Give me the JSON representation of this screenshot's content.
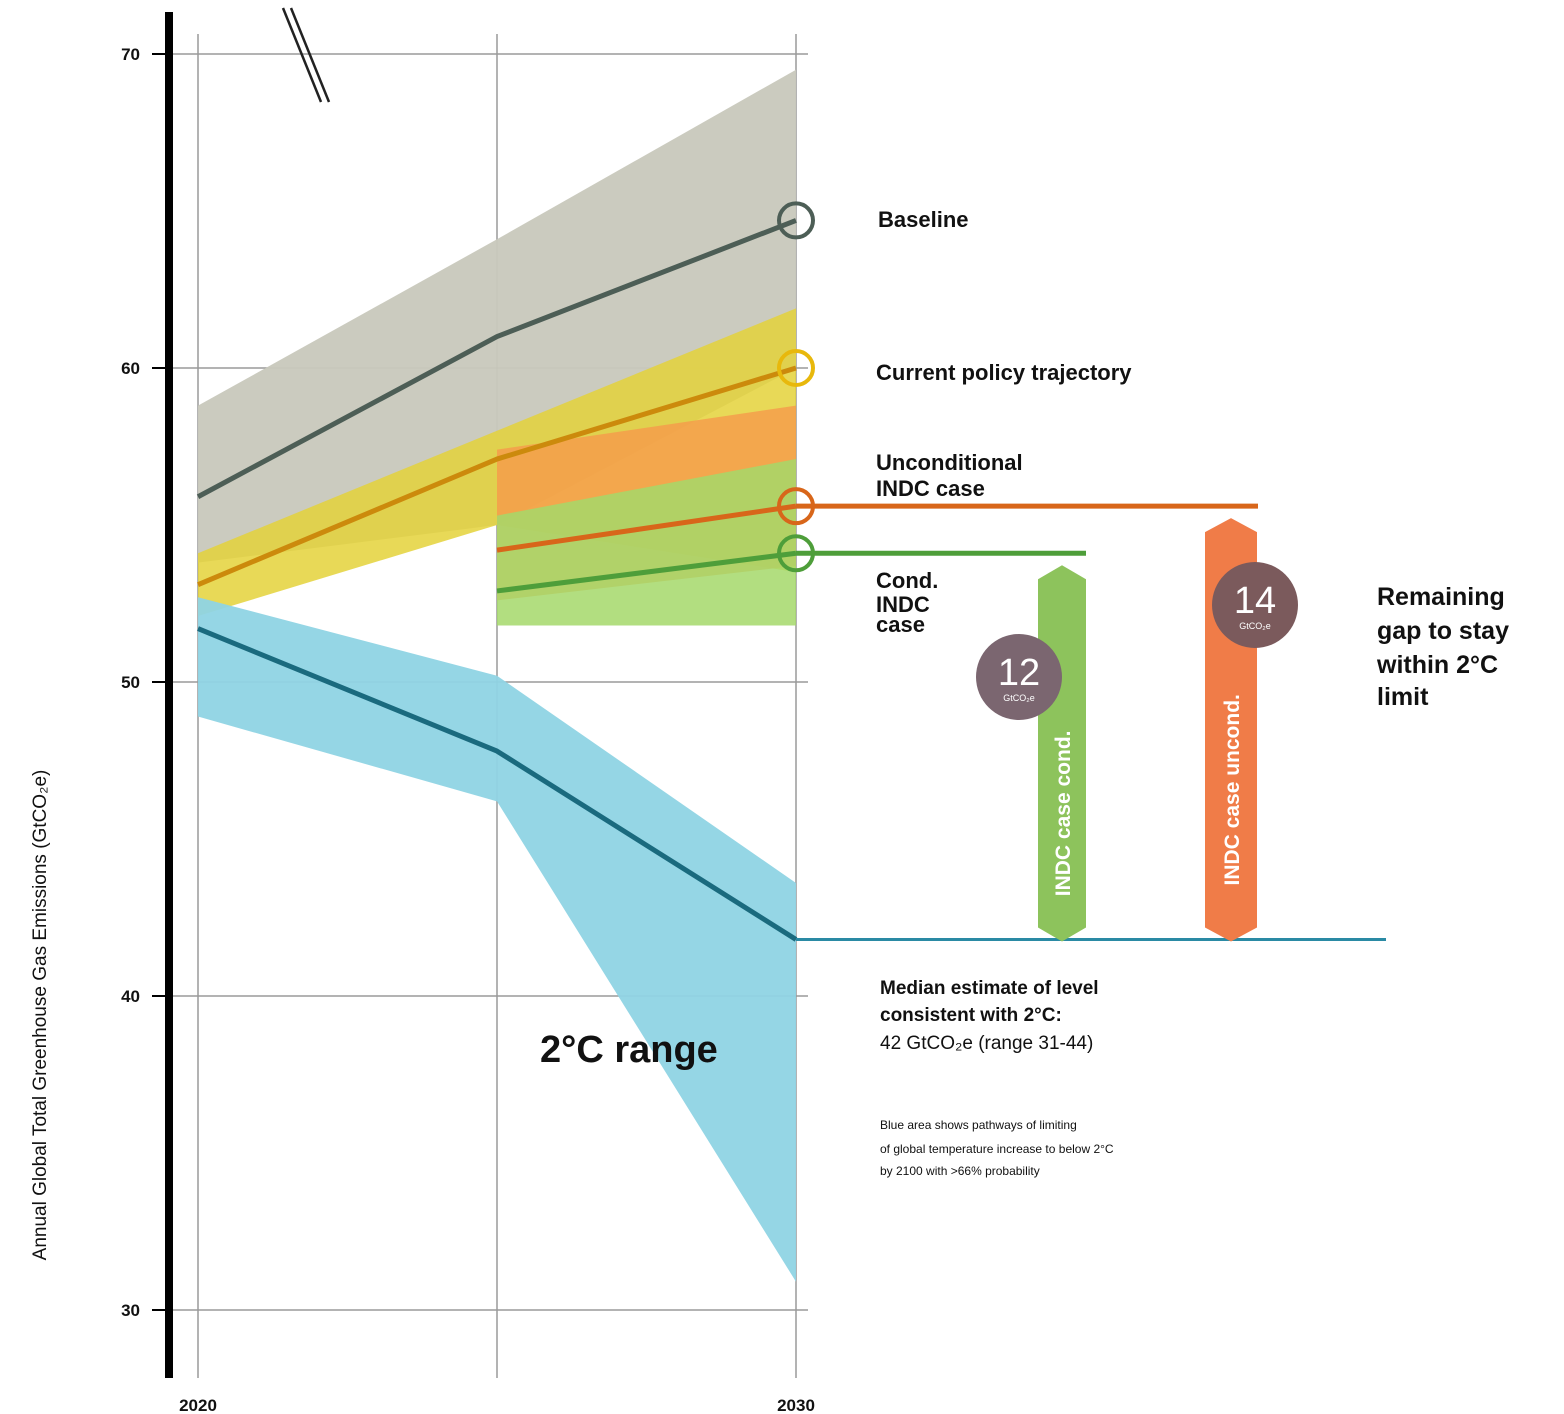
{
  "chart_data": {
    "type": "area",
    "title": "",
    "xlabel": "",
    "ylabel": "Annual Global Total Greenhouse Gas Emissions (GtCO₂e)",
    "xlim": [
      2020,
      2030
    ],
    "ylim": [
      28,
      72
    ],
    "x_ticks": [
      {
        "value": 2020,
        "label": "2020"
      },
      {
        "value": 2030,
        "label": "2030"
      }
    ],
    "y_ticks": [
      {
        "value": 30,
        "label": "30"
      },
      {
        "value": 40,
        "label": "40"
      },
      {
        "value": 50,
        "label": "50"
      },
      {
        "value": 60,
        "label": "60"
      },
      {
        "value": 70,
        "label": "70"
      }
    ],
    "x_gridlines": [
      2020,
      2025,
      2030
    ],
    "grid": true,
    "series": [
      {
        "name": "Baseline",
        "color": "#4d5e56",
        "band_color": "#c8c8bc",
        "x": [
          2020,
          2025,
          2030
        ],
        "values": [
          55.9,
          61.0,
          64.7
        ],
        "band_upper": [
          58.8,
          64.1,
          69.5
        ],
        "band_lower": [
          53.8,
          55.0,
          60.0
        ],
        "end_marker": true
      },
      {
        "name": "Current policy trajectory",
        "color": "#cc8a0c",
        "band_color": "#e4d23a",
        "x": [
          2020,
          2025,
          2030
        ],
        "values": [
          53.1,
          57.1,
          60.0
        ],
        "band_upper": [
          54.1,
          58.0,
          61.9
        ],
        "band_lower": [
          52.1,
          55.0,
          53.5
        ],
        "end_marker": true
      },
      {
        "name": "Unconditional INDC case",
        "color": "#d8661a",
        "band_color": "#f59d4b",
        "x": [
          2025,
          2030
        ],
        "values": [
          54.2,
          55.6
        ],
        "band_upper": [
          57.4,
          58.8
        ],
        "band_lower": [
          52.6,
          53.7
        ],
        "end_marker": true
      },
      {
        "name": "Cond. INDC case",
        "color": "#4e9e3a",
        "band_color": "#a4d86a",
        "x": [
          2025,
          2030
        ],
        "values": [
          52.9,
          54.1
        ],
        "band_upper": [
          55.3,
          57.1
        ],
        "band_lower": [
          51.8,
          51.8
        ],
        "end_marker": true
      },
      {
        "name": "2°C range",
        "color": "#1a6a7e",
        "band_color": "#8fd4e4",
        "x": [
          2020,
          2025,
          2030
        ],
        "values": [
          51.7,
          47.8,
          41.8
        ],
        "band_upper": [
          52.7,
          50.2,
          43.6
        ],
        "band_lower": [
          48.9,
          46.2,
          30.9
        ]
      }
    ],
    "reference_lines": [
      {
        "name": "Unconditional INDC case",
        "y": 55.6,
        "color": "#d8661a"
      },
      {
        "name": "Cond. INDC case",
        "y": 54.1,
        "color": "#4e9e3a"
      },
      {
        "name": "Median estimate of level consistent with 2°C",
        "y": 41.8,
        "color": "#2a8aa4"
      }
    ],
    "gap_bars": [
      {
        "label": "INDC case cond.",
        "value": 12,
        "unit": "GtCO₂e",
        "from": 41.8,
        "to": 54.1,
        "color": "#8dc35c",
        "badge_color": "#7b6670"
      },
      {
        "label": "INDC case uncond.",
        "value": 14,
        "unit": "GtCO₂e",
        "from": 41.8,
        "to": 55.6,
        "color": "#f07c48",
        "badge_color": "#7b5a5c"
      }
    ],
    "labels": {
      "baseline": "Baseline",
      "current_policy": "Current policy trajectory",
      "unconditional_line1": "Unconditional",
      "unconditional_line2": "INDC case",
      "cond_line1": "Cond.",
      "cond_line2": "INDC",
      "cond_line3": "case",
      "gap_line1": "Remaining",
      "gap_line2": "gap to stay",
      "gap_line3": "within 2°C",
      "gap_line4": "limit",
      "range": "2°C range",
      "median_line1": "Median estimate of level",
      "median_line2": "consistent with 2°C:",
      "median_line3": "42 GtCO₂e (range 31-44)",
      "note_line1": "Blue area shows pathways of limiting",
      "note_line2": "of global temperature increase to below 2°C",
      "note_line3": "by 2100 with >66% probability"
    }
  }
}
